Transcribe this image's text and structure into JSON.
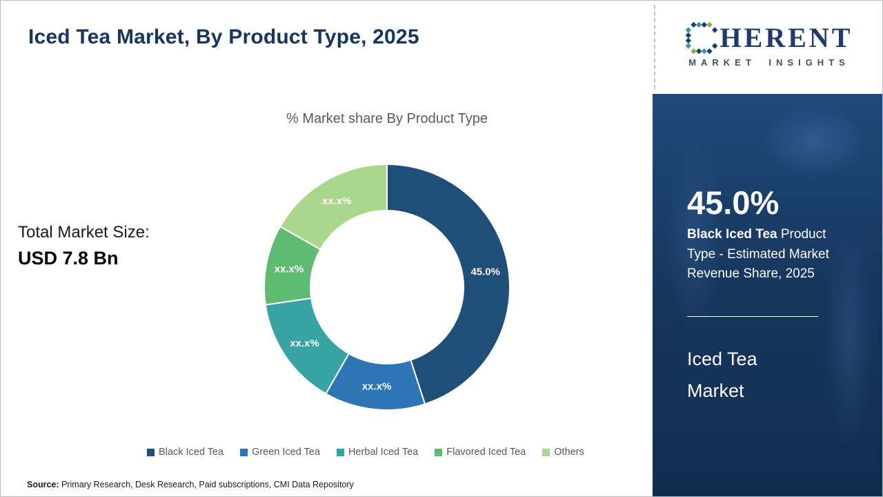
{
  "page": {
    "title": "Iced Tea Market, By Product Type, 2025",
    "source_label": "Source:",
    "source_text": " Primary Research, Desk Research, Paid subscriptions, CMI Data Repository"
  },
  "logo": {
    "word_rest": "HERENT",
    "subtitle": "MARKET INSIGHTS"
  },
  "left_stats": {
    "label": "Total Market Size:",
    "value": "USD 7.8 Bn"
  },
  "chart_data": {
    "type": "pie",
    "donut": true,
    "title": "% Market share By Product Type",
    "categories": [
      "Black Iced Tea",
      "Green Iced Tea",
      "Herbal Iced Tea",
      "Flavored Iced Tea",
      "Others"
    ],
    "values": [
      45.0,
      13.3,
      14.4,
      10.5,
      16.8
    ],
    "labels": [
      "45.0%",
      "xx.x%",
      "xx.x%",
      "xx.x%",
      "xx.x%"
    ],
    "colors": [
      "#1f4e79",
      "#2e75b6",
      "#38a3a3",
      "#5fbb72",
      "#a9d78c"
    ],
    "legend_position": "bottom",
    "start_angle_deg": 0,
    "direction": "clockwise"
  },
  "side_panel": {
    "stat_value": "45.0%",
    "stat_desc_bold": "Black Iced Tea",
    "stat_desc_rest": " Product Type - Estimated Market Revenue Share, 2025",
    "market_name": "Iced Tea Market",
    "bg_color": "#17375f"
  }
}
